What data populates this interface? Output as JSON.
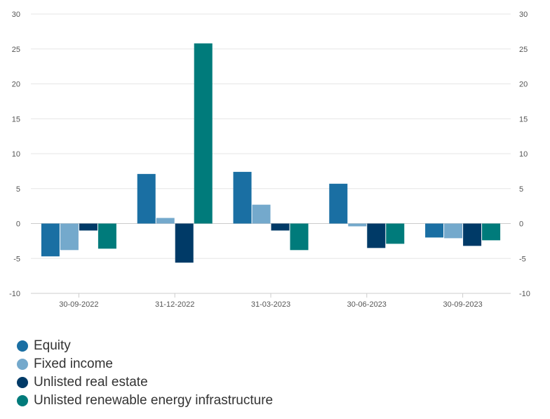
{
  "chart_data": {
    "type": "bar",
    "title": "",
    "xlabel": "",
    "ylabel": "",
    "ylim": [
      -10,
      30
    ],
    "yticks": [
      -10,
      -5,
      0,
      5,
      10,
      15,
      20,
      25,
      30
    ],
    "ytick_labels": [
      "-10",
      "-5",
      "0",
      "5",
      "10",
      "15",
      "20",
      "25",
      "30"
    ],
    "grid": true,
    "legend_position": "bottom-left",
    "categories": [
      "30-09-2022",
      "31-12-2022",
      "31-03-2023",
      "30-06-2023",
      "30-09-2023"
    ],
    "series": [
      {
        "name": "Equity",
        "color": "#1a6fa3",
        "values": [
          -4.7,
          7.1,
          7.4,
          5.7,
          -2.0
        ]
      },
      {
        "name": "Fixed income",
        "color": "#74a9cc",
        "values": [
          -3.8,
          0.8,
          2.7,
          -0.4,
          -2.1
        ]
      },
      {
        "name": "Unlisted real estate",
        "color": "#003a67",
        "values": [
          -1.0,
          -5.6,
          -1.0,
          -3.5,
          -3.2
        ]
      },
      {
        "name": "Unlisted renewable energy infrastructure",
        "color": "#007b7b",
        "values": [
          -3.6,
          25.8,
          -3.8,
          -2.9,
          -2.4
        ]
      }
    ]
  }
}
